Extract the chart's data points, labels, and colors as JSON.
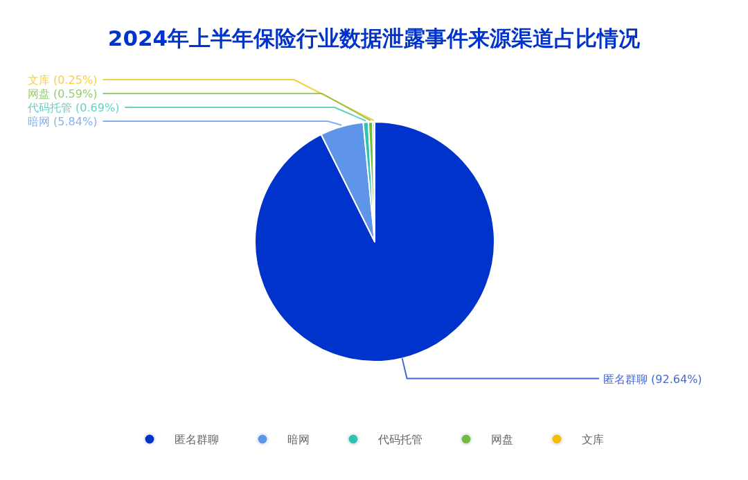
{
  "chart_data": {
    "type": "pie",
    "title": "2024年上半年保险行业数据泄露事件来源渠道占比情况",
    "categories": [
      "匿名群聊",
      "暗网",
      "代码托管",
      "网盘",
      "文库"
    ],
    "values": [
      92.64,
      5.84,
      0.69,
      0.59,
      0.25
    ],
    "colors": [
      "#0033cc",
      "#5f95e8",
      "#2ec2b0",
      "#72bb40",
      "#f5bd00"
    ],
    "value_labels": [
      "(92.64%)",
      "(5.84%)",
      "(0.69%)",
      "(0.59%)",
      "(0.25%)"
    ],
    "legend": "bottom"
  }
}
